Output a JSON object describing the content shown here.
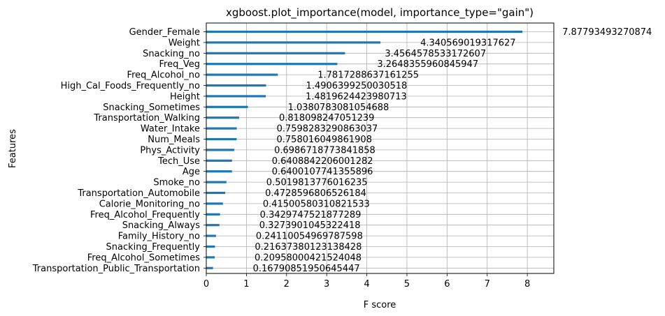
{
  "chart_data": {
    "type": "bar",
    "orientation": "horizontal",
    "title": "xgboost.plot_importance(model, importance_type=\"gain\")",
    "xlabel": "F score",
    "ylabel": "Features",
    "xlim": [
      0,
      8.66
    ],
    "xticks": [
      "0",
      "1",
      "2",
      "3",
      "4",
      "5",
      "6",
      "7",
      "8"
    ],
    "grid": true,
    "bar_color": "#1f77b4",
    "categories": [
      "Gender_Female",
      "Weight",
      "Snacking_no",
      "Freq_Veg",
      "Freq_Alcohol_no",
      "High_Cal_Foods_Frequently_no",
      "Height",
      "Snacking_Sometimes",
      "Transportation_Walking",
      "Water_Intake",
      "Num_Meals",
      "Phys_Activity",
      "Tech_Use",
      "Age",
      "Smoke_no",
      "Transportation_Automobile",
      "Calorie_Monitoring_no",
      "Freq_Alcohol_Frequently",
      "Snacking_Always",
      "Family_History_no",
      "Snacking_Frequently",
      "Freq_Alcohol_Sometimes",
      "Transportation_Public_Transportation"
    ],
    "values": [
      7.87793493270874,
      4.340569019317627,
      3.4564578533172607,
      3.2648355960845947,
      1.7817288637161255,
      1.4906399250030518,
      1.4819624423980713,
      1.0380783081054688,
      0.818098247051239,
      0.7598283290863037,
      0.758016049861908,
      0.6986718773841858,
      0.6408842206001282,
      0.6400107741355896,
      0.5019813776016235,
      0.4728596806526184,
      0.41500580310821533,
      0.3429747521877289,
      0.3273901045322418,
      0.24110054969787598,
      0.21637380123138428,
      0.20958000421524048,
      0.16790851950645447
    ],
    "value_labels": [
      "7.87793493270874",
      "4.340569019317627",
      "3.4564578533172607",
      "3.2648355960845947",
      "1.7817288637161255",
      "1.4906399250030518",
      "1.4819624423980713",
      "1.0380783081054688",
      "0.818098247051239",
      "0.7598283290863037",
      "0.758016049861908",
      "0.6986718773841858",
      "0.6408842206001282",
      "0.6400107741355896",
      "0.5019813776016235",
      "0.4728596806526184",
      "0.41500580310821533",
      "0.3429747521877289",
      "0.3273901045322418",
      "0.24110054969787598",
      "0.21637380123138428",
      "0.20958000421524048",
      "0.16790851950645447"
    ]
  }
}
